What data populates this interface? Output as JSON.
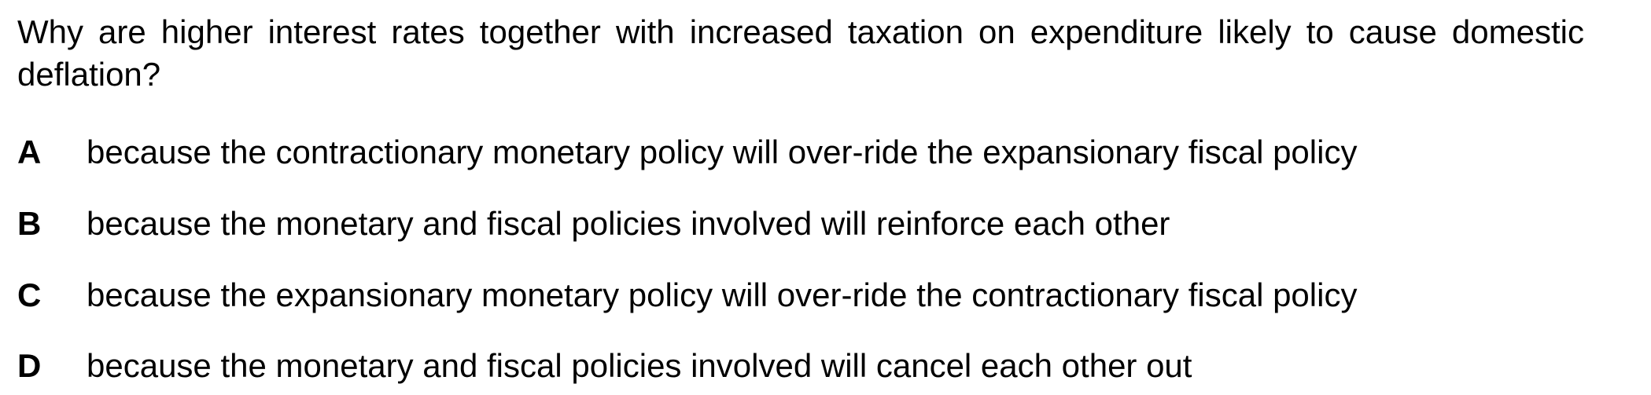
{
  "question": {
    "text": "Why are higher interest rates together with increased taxation on expenditure likely to cause domestic deflation?"
  },
  "options": [
    {
      "letter": "A",
      "text": "because the contractionary monetary policy will over-ride the expansionary fiscal policy"
    },
    {
      "letter": "B",
      "text": "because the monetary and fiscal policies involved will reinforce each other"
    },
    {
      "letter": "C",
      "text": "because the expansionary monetary policy will over-ride the contractionary fiscal policy"
    },
    {
      "letter": "D",
      "text": "because the monetary and fiscal policies involved will cancel each other out"
    }
  ]
}
